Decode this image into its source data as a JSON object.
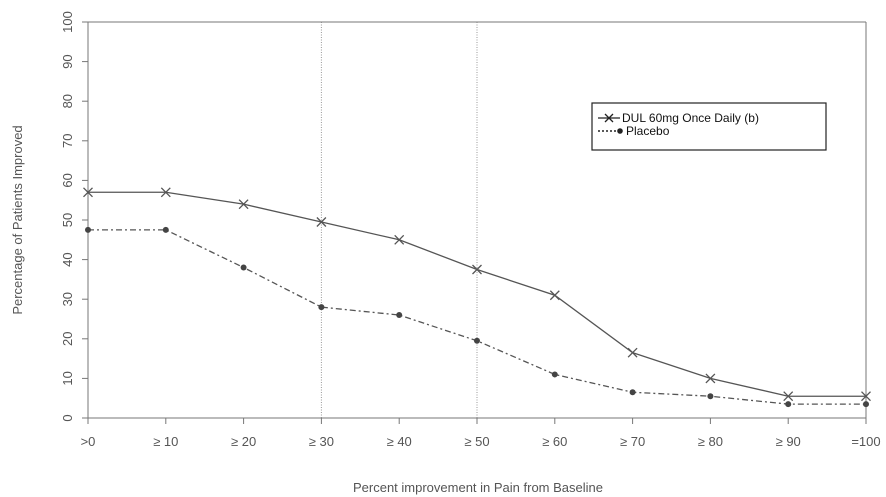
{
  "chart_data": {
    "type": "line",
    "title": "",
    "xlabel": "Percent improvement in Pain from Baseline",
    "ylabel": "Percentage of Patients Improved",
    "categories": [
      ">0",
      "≥ 10",
      "≥ 20",
      "≥ 30",
      "≥ 40",
      "≥ 50",
      "≥ 60",
      "≥ 70",
      "≥ 80",
      "≥ 90",
      "=100"
    ],
    "yticks": [
      0,
      10,
      20,
      30,
      40,
      50,
      60,
      70,
      80,
      90,
      100
    ],
    "ylim": [
      0,
      100
    ],
    "grid": false,
    "reference_lines_at": [
      "≥ 30",
      "≥ 50"
    ],
    "legend_position": "top-right",
    "series": [
      {
        "name": "DUL 60mg Once Daily (b)",
        "marker": "x",
        "line_style": "solid",
        "color": "#555555",
        "values": [
          57,
          57,
          54,
          49.5,
          45,
          37.5,
          31,
          16.5,
          10,
          5.5,
          5.5
        ]
      },
      {
        "name": "Placebo",
        "marker": "dot",
        "line_style": "dashed",
        "color": "#555555",
        "values": [
          47.5,
          47.5,
          38,
          28,
          26,
          19.5,
          11,
          6.5,
          5.5,
          3.5,
          3.5
        ]
      }
    ]
  }
}
